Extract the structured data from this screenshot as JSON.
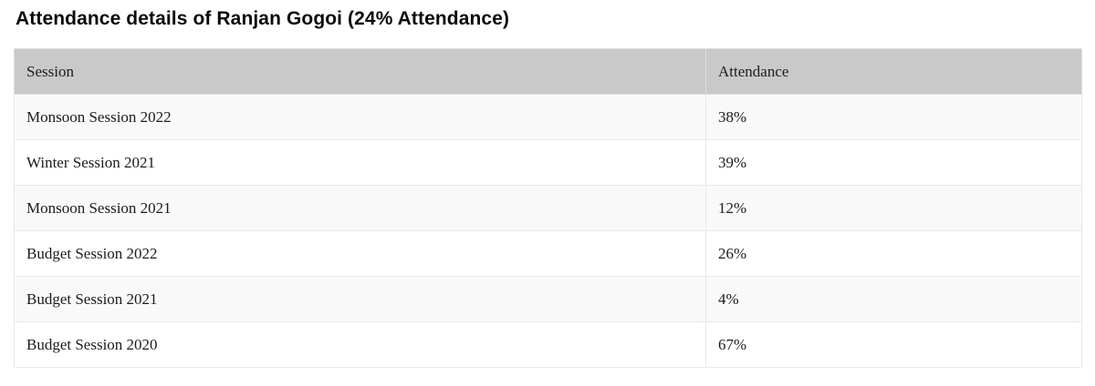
{
  "page": {
    "title": "Attendance details of Ranjan Gogoi (24% Attendance)"
  },
  "table": {
    "columns": [
      "Session",
      "Attendance"
    ],
    "rows": [
      {
        "session": "Monsoon Session 2022",
        "attendance": "38%"
      },
      {
        "session": "Winter Session 2021",
        "attendance": "39%"
      },
      {
        "session": "Monsoon Session 2021",
        "attendance": "12%"
      },
      {
        "session": "Budget Session 2022",
        "attendance": "26%"
      },
      {
        "session": "Budget Session 2021",
        "attendance": "4%"
      },
      {
        "session": "Budget Session 2020",
        "attendance": "67%"
      }
    ]
  },
  "chart_data": {
    "type": "table",
    "title": "Attendance details of Ranjan Gogoi (24% Attendance)",
    "columns": [
      "Session",
      "Attendance"
    ],
    "categories": [
      "Monsoon Session 2022",
      "Winter Session 2021",
      "Monsoon Session 2021",
      "Budget Session 2022",
      "Budget Session 2021",
      "Budget Session 2020"
    ],
    "values": [
      38,
      39,
      12,
      26,
      4,
      67
    ],
    "value_unit": "%",
    "member_name": "Ranjan Gogoi",
    "overall_attendance_percent": 24
  },
  "colors": {
    "header_bg": "#c9c9c9",
    "header_border": "#dedede",
    "row_bg": "#ffffff",
    "row_alt_bg": "#f9f9f9",
    "border": "#e9e9e9",
    "title_text": "#0b0b0b",
    "cell_text": "#1c1c1c"
  }
}
